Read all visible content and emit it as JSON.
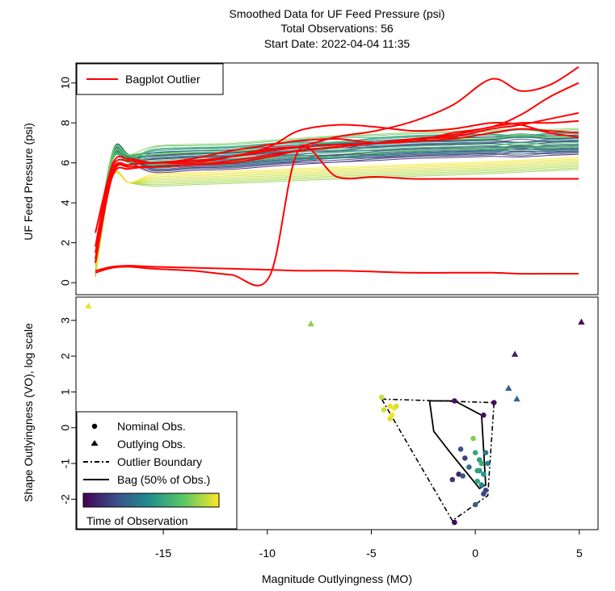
{
  "title": {
    "line1": "Smoothed Data for UF Feed Pressure (psi)",
    "line2": "Total Observations: 56",
    "line3": "Start Date: 2022-04-04 11:35"
  },
  "chart_data": [
    {
      "type": "line",
      "ylabel": "UF Feed Pressure (psi)",
      "ylim": [
        -0.6,
        11.0
      ],
      "yticks": [
        "0",
        "2",
        "4",
        "6",
        "8",
        "10"
      ],
      "legend": {
        "position": "top-left",
        "label": "Bagplot Outlier",
        "color": "#ff0000"
      },
      "outlier_series": [
        {
          "y": [
            2.5,
            5.8,
            6.1,
            6.0,
            6.1,
            6.3,
            6.6,
            6.8,
            7.3,
            7.6,
            8.1,
            8.9,
            10.2,
            9.6,
            9.9,
            10.8
          ]
        },
        {
          "y": [
            1.8,
            5.9,
            6.2,
            6.0,
            6.2,
            6.6,
            6.9,
            7.1,
            7.2,
            7.0,
            7.1,
            7.5,
            7.8,
            8.4,
            9.3,
            10.0
          ]
        },
        {
          "y": [
            1.5,
            5.6,
            5.9,
            6.0,
            6.1,
            6.3,
            6.7,
            6.8,
            6.9,
            7.0,
            7.2,
            7.3,
            7.7,
            7.9,
            8.2,
            8.5
          ]
        },
        {
          "y": [
            1.2,
            5.5,
            5.8,
            5.8,
            5.9,
            6.0,
            6.3,
            6.6,
            6.8,
            7.0,
            7.2,
            7.4,
            7.8,
            8.0,
            8.0,
            8.1
          ]
        },
        {
          "y": [
            1.0,
            5.3,
            5.7,
            5.8,
            5.9,
            6.1,
            6.4,
            6.6,
            6.8,
            7.0,
            7.1,
            7.2,
            7.5,
            7.7,
            7.6,
            7.5
          ]
        },
        {
          "y": [
            1.0,
            5.4,
            5.9,
            6.0,
            6.0,
            6.3,
            6.8,
            7.6,
            7.9,
            7.8,
            7.6,
            7.7,
            8.0,
            7.9,
            7.5,
            7.3
          ]
        },
        {
          "y": [
            0.5,
            0.75,
            0.8,
            0.7,
            0.6,
            0.4,
            0.3,
            6.6,
            5.3,
            5.3,
            5.2,
            5.2,
            5.2,
            5.2,
            5.2,
            5.2
          ]
        },
        {
          "y": [
            0.6,
            0.8,
            0.85,
            0.8,
            0.75,
            0.7,
            0.65,
            0.6,
            0.6,
            0.55,
            0.5,
            0.5,
            0.5,
            0.45,
            0.45,
            0.45
          ]
        }
      ]
    },
    {
      "type": "scatter",
      "xlabel": "Magnitude Outlyingness (MO)",
      "ylabel": "Shape Outlyingness (VO), log scale",
      "xlim": [
        -19.2,
        5.9
      ],
      "ylim": [
        -2.85,
        3.65
      ],
      "xticks": [
        -15,
        -10,
        -5,
        0,
        5
      ],
      "yticks": [
        -2,
        -1,
        0,
        1,
        2,
        3
      ],
      "legend": {
        "position": "bottom-left",
        "items": [
          "Nominal Obs.",
          "Outlying Obs.",
          "Outlier Boundary",
          "Bag (50% of Obs.)"
        ],
        "colorbar_label": "Time of Observation"
      },
      "colormap": [
        "#440154",
        "#3b528b",
        "#21918c",
        "#5ec962",
        "#fde725"
      ],
      "outlying": [
        {
          "x": -18.6,
          "y": 3.4,
          "t": 0.97
        },
        {
          "x": -7.9,
          "y": 2.9,
          "t": 0.82
        },
        {
          "x": 5.1,
          "y": 2.95,
          "t": 0.05
        },
        {
          "x": 1.9,
          "y": 2.05,
          "t": 0.1
        },
        {
          "x": 1.6,
          "y": 1.1,
          "t": 0.3
        },
        {
          "x": 2.0,
          "y": 0.8,
          "t": 0.32
        }
      ],
      "nominal": [
        {
          "x": -4.5,
          "y": 0.85,
          "t": 0.92
        },
        {
          "x": -4.4,
          "y": 0.5,
          "t": 0.93
        },
        {
          "x": -4.1,
          "y": 0.6,
          "t": 0.96
        },
        {
          "x": -3.9,
          "y": 0.55,
          "t": 0.98
        },
        {
          "x": -4.0,
          "y": 0.35,
          "t": 0.99
        },
        {
          "x": -4.1,
          "y": 0.25,
          "t": 0.95
        },
        {
          "x": -3.8,
          "y": 0.6,
          "t": 0.94
        },
        {
          "x": -1.0,
          "y": 0.75,
          "t": 0.04
        },
        {
          "x": 0.9,
          "y": 0.7,
          "t": 0.03
        },
        {
          "x": 0.4,
          "y": 0.35,
          "t": 0.06
        },
        {
          "x": -0.1,
          "y": -0.3,
          "t": 0.8
        },
        {
          "x": -0.7,
          "y": -0.6,
          "t": 0.25
        },
        {
          "x": -0.5,
          "y": -0.85,
          "t": 0.2
        },
        {
          "x": -0.3,
          "y": -1.1,
          "t": 0.35
        },
        {
          "x": 0.0,
          "y": -0.7,
          "t": 0.6
        },
        {
          "x": 0.2,
          "y": -0.9,
          "t": 0.55
        },
        {
          "x": 0.3,
          "y": -1.0,
          "t": 0.62
        },
        {
          "x": 0.5,
          "y": -0.7,
          "t": 0.4
        },
        {
          "x": 0.6,
          "y": -1.0,
          "t": 0.45
        },
        {
          "x": 0.2,
          "y": -1.2,
          "t": 0.5
        },
        {
          "x": 0.4,
          "y": -1.3,
          "t": 0.52
        },
        {
          "x": 0.1,
          "y": -1.5,
          "t": 0.58
        },
        {
          "x": 0.3,
          "y": -1.6,
          "t": 0.48
        },
        {
          "x": -0.8,
          "y": -1.3,
          "t": 0.12
        },
        {
          "x": -1.1,
          "y": -1.45,
          "t": 0.15
        },
        {
          "x": -0.6,
          "y": -1.35,
          "t": 0.28
        },
        {
          "x": 0.5,
          "y": -1.75,
          "t": 0.2
        },
        {
          "x": 0.4,
          "y": -1.85,
          "t": 0.22
        },
        {
          "x": 0.0,
          "y": -2.15,
          "t": 0.3
        },
        {
          "x": -1.0,
          "y": -2.65,
          "t": 0.02
        },
        {
          "x": 0.1,
          "y": -1.2,
          "t": 0.57
        }
      ]
    }
  ]
}
